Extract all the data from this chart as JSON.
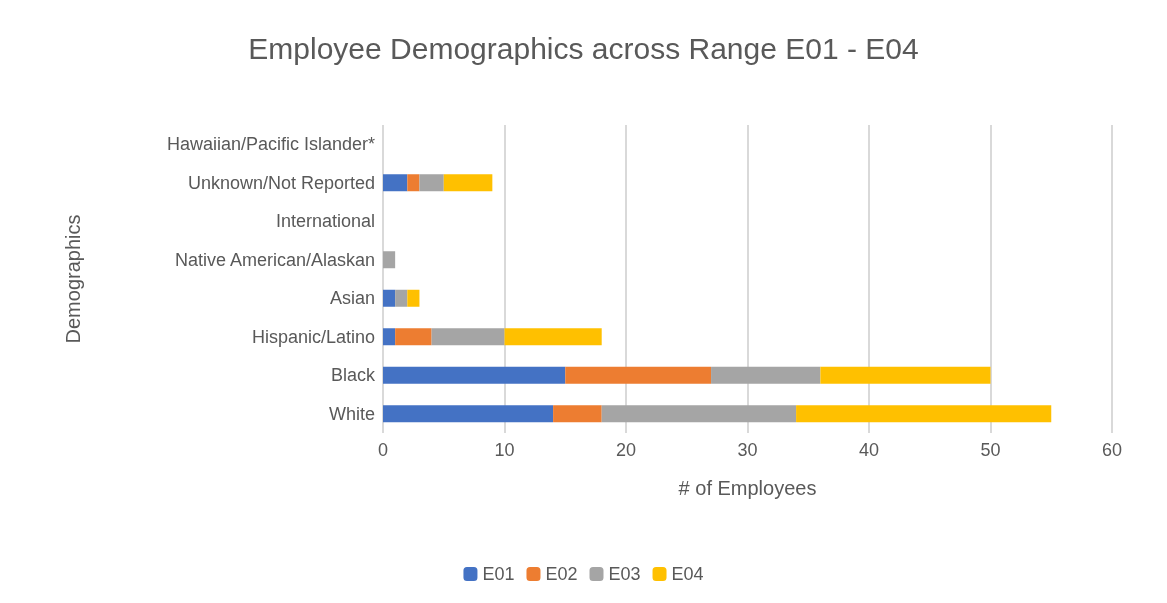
{
  "chart_data": {
    "type": "bar",
    "title": "Employee Demographics across Range E01 - E04",
    "xlabel": "# of Employees",
    "ylabel": "Demographics",
    "orientation": "horizontal",
    "stacked": true,
    "categories": [
      "Hawaiian/Pacific Islander*",
      "Unknown/Not Reported",
      "International",
      "Native American/Alaskan",
      "Asian",
      "Hispanic/Latino",
      "Black",
      "White"
    ],
    "series": [
      {
        "name": "E01",
        "color": "#4472c4",
        "values": [
          0,
          2,
          0,
          0,
          1,
          1,
          15,
          14
        ]
      },
      {
        "name": "E02",
        "color": "#ed7d31",
        "values": [
          0,
          1,
          0,
          0,
          0,
          3,
          12,
          4
        ]
      },
      {
        "name": "E03",
        "color": "#a5a5a5",
        "values": [
          0,
          2,
          0,
          1,
          1,
          6,
          9,
          16
        ]
      },
      {
        "name": "E04",
        "color": "#ffc000",
        "values": [
          0,
          4,
          0,
          0,
          1,
          8,
          14,
          21
        ]
      }
    ],
    "xlim": [
      0,
      60
    ],
    "xticks": [
      0,
      10,
      20,
      30,
      40,
      50,
      60
    ],
    "grid": "x",
    "legend": "bottom"
  }
}
